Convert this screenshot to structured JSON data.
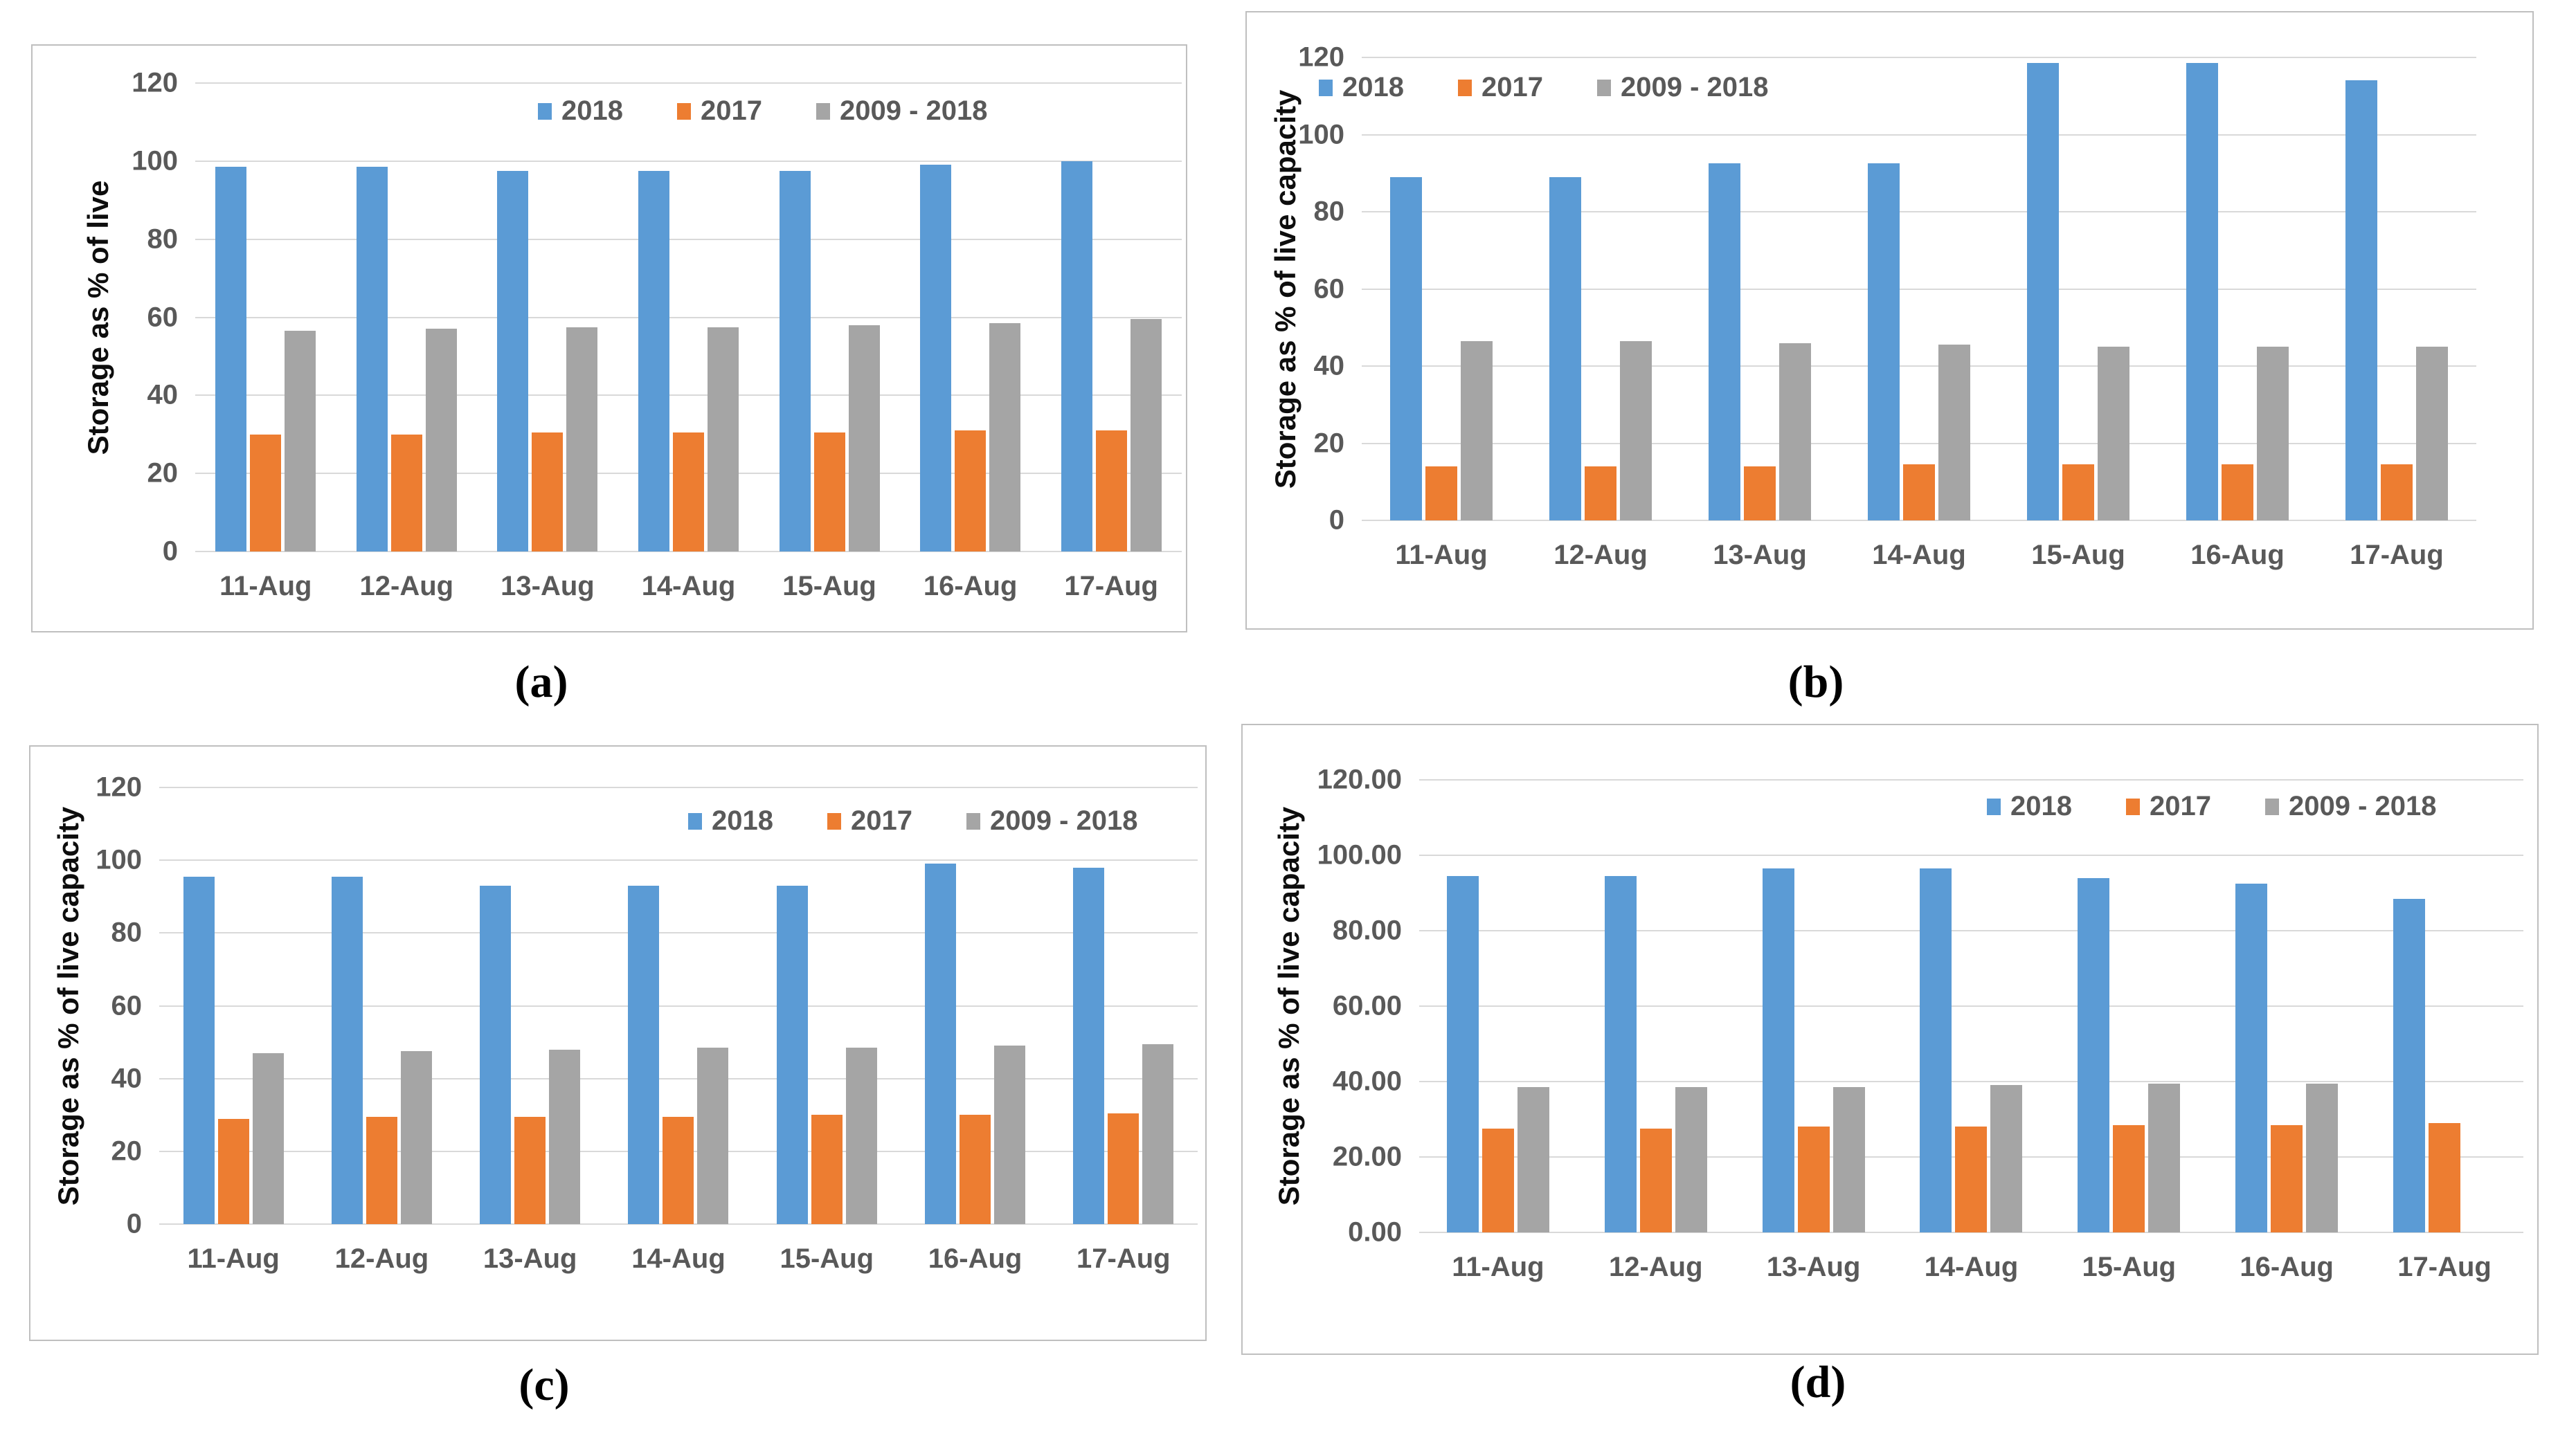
{
  "figure": {
    "background": "#FFFFFF",
    "panel_border_color": "#BFBFBF",
    "gridline_color": "#D9D9D9",
    "tick_text_color": "#595959",
    "axis_title_color": "#0D0D0D",
    "captions": {
      "a": "(a)",
      "b": "(b)",
      "c": "(c)",
      "d": "(d)"
    }
  },
  "chart_data": [
    {
      "id": "a",
      "type": "bar",
      "caption": "(a)",
      "title": "",
      "ylabel": "Storage as % of live",
      "xlabel": "",
      "ylim": [
        0,
        120
      ],
      "ytick_step": 20,
      "yticks": [
        "0",
        "20",
        "40",
        "60",
        "80",
        "100",
        "120"
      ],
      "grid": true,
      "legend_position": "top-center",
      "categories": [
        "11-Aug",
        "12-Aug",
        "13-Aug",
        "14-Aug",
        "15-Aug",
        "16-Aug",
        "17-Aug"
      ],
      "series": [
        {
          "name": "2018",
          "color": "#5B9BD5",
          "values": [
            98.5,
            98.5,
            97.5,
            97.5,
            97.5,
            99,
            100
          ]
        },
        {
          "name": "2017",
          "color": "#ED7D31",
          "values": [
            30,
            30,
            30.5,
            30.5,
            30.5,
            31,
            31
          ]
        },
        {
          "name": "2009 - 2018",
          "color": "#A5A5A5",
          "values": [
            56.5,
            57,
            57.5,
            57.5,
            58,
            58.5,
            59.5
          ]
        }
      ]
    },
    {
      "id": "b",
      "type": "bar",
      "caption": "(b)",
      "title": "",
      "ylabel": "Storage as % of live capacity",
      "xlabel": "",
      "ylim": [
        0,
        120
      ],
      "ytick_step": 20,
      "yticks": [
        "0",
        "20",
        "40",
        "60",
        "80",
        "100",
        "120"
      ],
      "grid": true,
      "legend_position": "top-left",
      "categories": [
        "11-Aug",
        "12-Aug",
        "13-Aug",
        "14-Aug",
        "15-Aug",
        "16-Aug",
        "17-Aug"
      ],
      "series": [
        {
          "name": "2018",
          "color": "#5B9BD5",
          "values": [
            89,
            89,
            92.5,
            92.5,
            118.5,
            118.5,
            114
          ]
        },
        {
          "name": "2017",
          "color": "#ED7D31",
          "values": [
            14,
            14,
            14,
            14.5,
            14.5,
            14.5,
            14.5
          ]
        },
        {
          "name": "2009 - 2018",
          "color": "#A5A5A5",
          "values": [
            46.5,
            46.5,
            46,
            45.5,
            45,
            45,
            45
          ]
        }
      ]
    },
    {
      "id": "c",
      "type": "bar",
      "caption": "(c)",
      "title": "",
      "ylabel": "Storage as % of live capacity",
      "xlabel": "",
      "ylim": [
        0,
        120
      ],
      "ytick_step": 20,
      "yticks": [
        "0",
        "20",
        "40",
        "60",
        "80",
        "100",
        "120"
      ],
      "grid": true,
      "legend_position": "top-right",
      "categories": [
        "11-Aug",
        "12-Aug",
        "13-Aug",
        "14-Aug",
        "15-Aug",
        "16-Aug",
        "17-Aug"
      ],
      "series": [
        {
          "name": "2018",
          "color": "#5B9BD5",
          "values": [
            95.5,
            95.5,
            93,
            93,
            93,
            99,
            98
          ]
        },
        {
          "name": "2017",
          "color": "#ED7D31",
          "values": [
            29,
            29.5,
            29.5,
            29.5,
            30,
            30,
            30.5
          ]
        },
        {
          "name": "2009 - 2018",
          "color": "#A5A5A5",
          "values": [
            47,
            47.5,
            48,
            48.5,
            48.5,
            49,
            49.5
          ]
        }
      ]
    },
    {
      "id": "d",
      "type": "bar",
      "caption": "(d)",
      "title": "",
      "ylabel": "Storage as % of live capacity",
      "xlabel": "",
      "ylim": [
        0,
        120
      ],
      "ytick_step": 20,
      "yticks": [
        "0.00",
        "20.00",
        "40.00",
        "60.00",
        "80.00",
        "100.00",
        "120.00"
      ],
      "grid": true,
      "legend_position": "top-right",
      "categories": [
        "11-Aug",
        "12-Aug",
        "13-Aug",
        "14-Aug",
        "15-Aug",
        "16-Aug",
        "17-Aug"
      ],
      "series": [
        {
          "name": "2018",
          "color": "#5B9BD5",
          "values": [
            94.5,
            94.5,
            96.5,
            96.5,
            94,
            92.5,
            88.5
          ]
        },
        {
          "name": "2017",
          "color": "#ED7D31",
          "values": [
            27.5,
            27.5,
            28,
            28,
            28.5,
            28.5,
            29
          ]
        },
        {
          "name": "2009 - 2018",
          "color": "#A5A5A5",
          "values": [
            38.5,
            38.5,
            38.5,
            39,
            39.5,
            39.5,
            null
          ]
        }
      ]
    }
  ]
}
